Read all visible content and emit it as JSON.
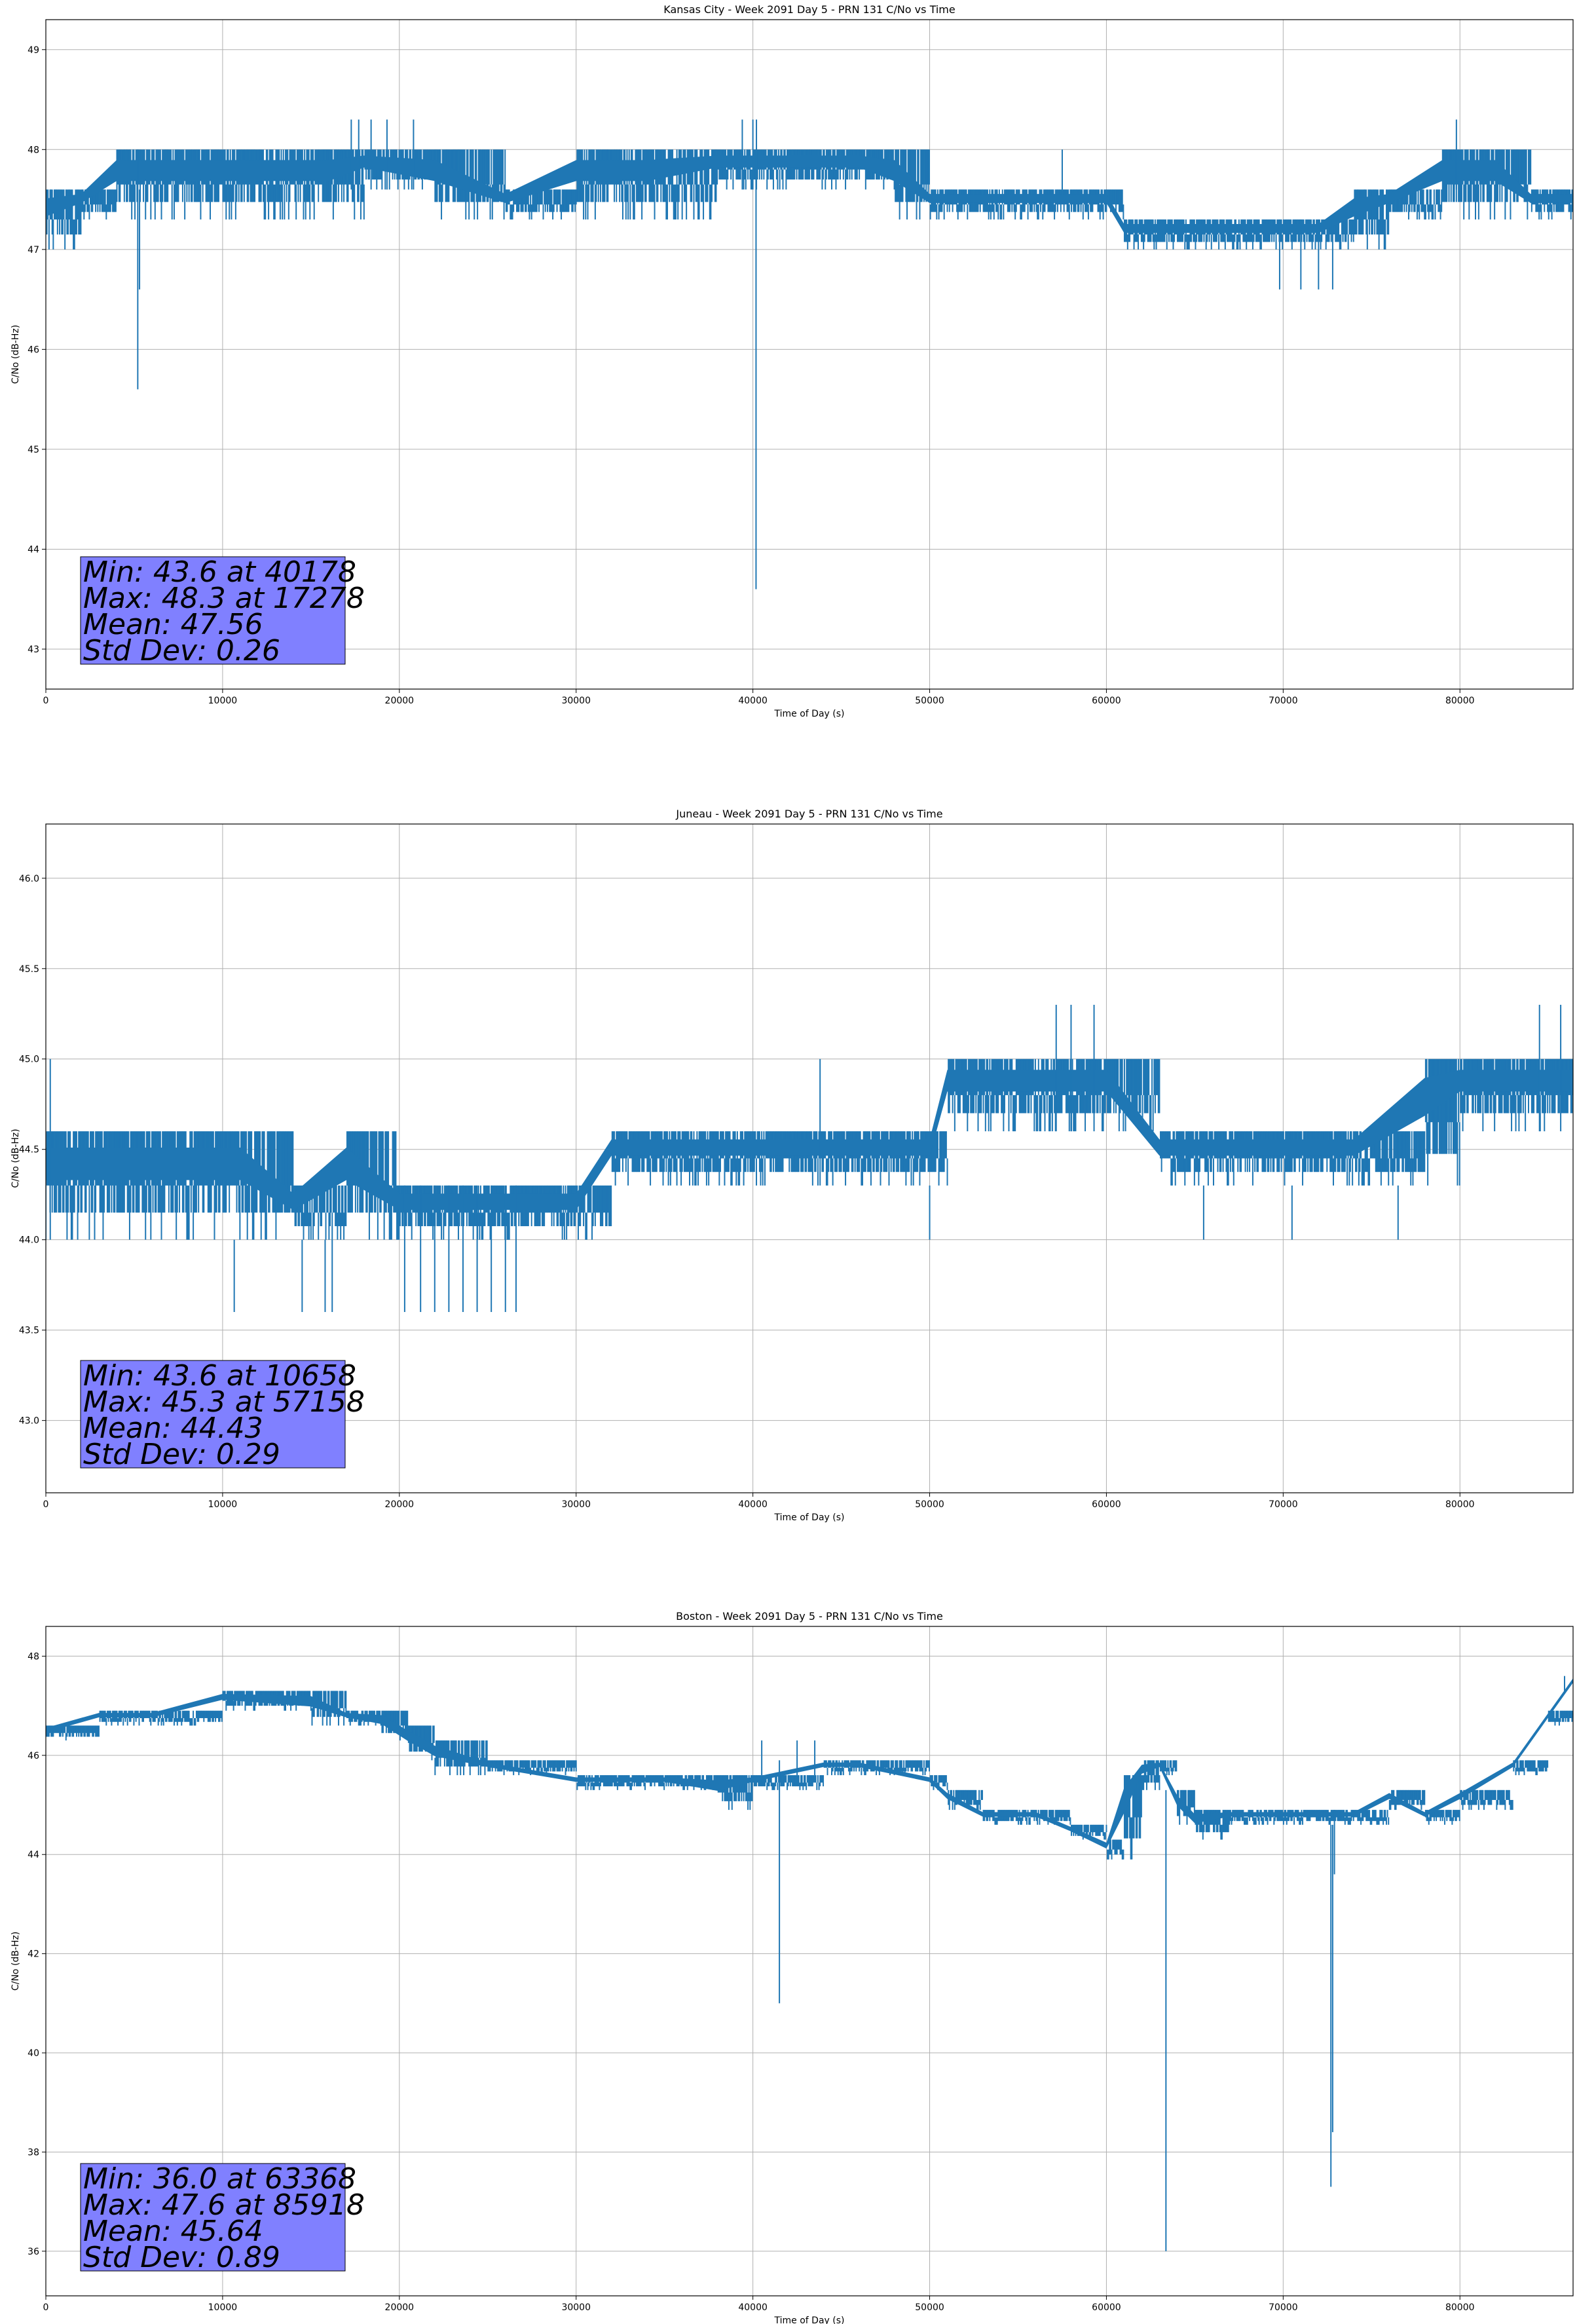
{
  "figure": {
    "background": "#ffffff",
    "line_color": "#1f77b4",
    "stats_box_color": "#8080ff"
  },
  "chart_data": [
    {
      "type": "line",
      "title": "Kansas City - Week 2091 Day 5 - PRN 131 C/No vs Time",
      "xlabel": "Time of Day (s)",
      "ylabel": "C/No (dB-Hz)",
      "xlim": [
        0,
        86400
      ],
      "ylim": [
        42.6,
        49.3
      ],
      "xticks": [
        0,
        10000,
        20000,
        30000,
        40000,
        50000,
        60000,
        70000,
        80000
      ],
      "xtick_labels": [
        "0",
        "10000",
        "20000",
        "30000",
        "40000",
        "50000",
        "60000",
        "70000",
        "80000"
      ],
      "yticks": [
        43,
        44,
        45,
        46,
        47,
        48,
        49
      ],
      "ytick_labels": [
        "43",
        "44",
        "45",
        "46",
        "47",
        "48",
        "49"
      ],
      "grid": true,
      "stats": [
        "Min: 43.6 at 40178",
        "Max: 48.3 at 17278",
        "Mean: 47.56",
        "Std Dev: 0.26"
      ],
      "band": {
        "x": [
          0,
          2000,
          4000,
          5000,
          8000,
          12000,
          16000,
          18000,
          22000,
          26000,
          30000,
          34000,
          38000,
          42000,
          46000,
          48000,
          50000,
          54000,
          58000,
          60000,
          61000,
          64000,
          68000,
          72000,
          74000,
          76000,
          79000,
          82000,
          84000,
          86400
        ],
        "low": [
          47.0,
          47.3,
          47.3,
          47.3,
          47.3,
          47.3,
          47.3,
          47.6,
          47.3,
          47.3,
          47.3,
          47.3,
          47.6,
          47.6,
          47.6,
          47.3,
          47.3,
          47.3,
          47.3,
          47.3,
          47.0,
          47.0,
          47.0,
          47.0,
          47.0,
          47.3,
          47.3,
          47.3,
          47.3,
          47.3
        ],
        "high": [
          47.6,
          47.6,
          48.0,
          48.0,
          48.0,
          48.0,
          48.0,
          48.0,
          48.0,
          47.6,
          48.0,
          48.0,
          48.0,
          48.0,
          48.0,
          48.0,
          47.6,
          47.6,
          47.6,
          47.6,
          47.3,
          47.3,
          47.3,
          47.3,
          47.6,
          47.6,
          48.0,
          48.0,
          47.6,
          47.6
        ]
      },
      "spikes": [
        {
          "x": 5200,
          "low": 45.6,
          "high": 48.0
        },
        {
          "x": 5300,
          "low": 46.6,
          "high": 47.6
        },
        {
          "x": 40178,
          "low": 43.6,
          "high": 48.0
        },
        {
          "x": 17278,
          "low": 47.6,
          "high": 48.3
        },
        {
          "x": 17700,
          "low": 47.6,
          "high": 48.3
        },
        {
          "x": 18400,
          "low": 47.6,
          "high": 48.3
        },
        {
          "x": 19300,
          "low": 47.6,
          "high": 48.3
        },
        {
          "x": 20800,
          "low": 47.6,
          "high": 48.3
        },
        {
          "x": 39400,
          "low": 47.6,
          "high": 48.3
        },
        {
          "x": 40000,
          "low": 47.6,
          "high": 48.3
        },
        {
          "x": 40200,
          "low": 47.6,
          "high": 48.3
        },
        {
          "x": 69800,
          "low": 46.6,
          "high": 47.3
        },
        {
          "x": 71000,
          "low": 46.6,
          "high": 47.3
        },
        {
          "x": 72000,
          "low": 46.6,
          "high": 47.3
        },
        {
          "x": 72800,
          "low": 46.6,
          "high": 47.3
        },
        {
          "x": 79800,
          "low": 47.6,
          "high": 48.3
        },
        {
          "x": 57500,
          "low": 47.6,
          "high": 48.0
        }
      ]
    },
    {
      "type": "line",
      "title": "Juneau - Week 2091 Day 5 - PRN 131 C/No vs Time",
      "xlabel": "Time of Day (s)",
      "ylabel": "C/No (dB-Hz)",
      "xlim": [
        0,
        86400
      ],
      "ylim": [
        42.6,
        46.3
      ],
      "xticks": [
        0,
        10000,
        20000,
        30000,
        40000,
        50000,
        60000,
        70000,
        80000
      ],
      "xtick_labels": [
        "0",
        "10000",
        "20000",
        "30000",
        "40000",
        "50000",
        "60000",
        "70000",
        "80000"
      ],
      "yticks": [
        43.0,
        43.5,
        44.0,
        44.5,
        45.0,
        45.5,
        46.0
      ],
      "ytick_labels": [
        "43.0",
        "43.5",
        "44.0",
        "44.5",
        "45.0",
        "45.5",
        "46.0"
      ],
      "grid": true,
      "stats": [
        "Min: 43.6 at 10658",
        "Max: 45.3 at 57158",
        "Mean: 44.43",
        "Std Dev: 0.29"
      ],
      "band": {
        "x": [
          0,
          2000,
          5000,
          9000,
          11000,
          14000,
          17000,
          20000,
          24000,
          27000,
          30000,
          32000,
          36000,
          40000,
          43000,
          46000,
          50000,
          51000,
          54000,
          57000,
          60000,
          63000,
          66000,
          70000,
          74000,
          78000,
          80000,
          83000,
          86400
        ],
        "low": [
          44.0,
          44.0,
          44.0,
          44.0,
          44.0,
          44.0,
          44.0,
          44.0,
          44.0,
          44.0,
          44.0,
          44.3,
          44.3,
          44.3,
          44.3,
          44.3,
          44.3,
          44.6,
          44.6,
          44.6,
          44.6,
          44.3,
          44.3,
          44.3,
          44.3,
          44.3,
          44.6,
          44.6,
          44.6
        ],
        "high": [
          44.6,
          44.6,
          44.6,
          44.6,
          44.6,
          44.3,
          44.6,
          44.3,
          44.3,
          44.3,
          44.3,
          44.6,
          44.6,
          44.6,
          44.6,
          44.6,
          44.6,
          45.0,
          45.0,
          45.0,
          45.0,
          44.6,
          44.6,
          44.6,
          44.6,
          45.0,
          45.0,
          45.0,
          45.0
        ]
      },
      "spikes": [
        {
          "x": 250,
          "low": 44.0,
          "high": 45.0
        },
        {
          "x": 10658,
          "low": 43.6,
          "high": 44.0
        },
        {
          "x": 14500,
          "low": 43.6,
          "high": 44.0
        },
        {
          "x": 15800,
          "low": 43.6,
          "high": 44.0
        },
        {
          "x": 16200,
          "low": 43.6,
          "high": 44.0
        },
        {
          "x": 20300,
          "low": 43.6,
          "high": 44.3
        },
        {
          "x": 21200,
          "low": 43.6,
          "high": 44.3
        },
        {
          "x": 22000,
          "low": 43.6,
          "high": 44.3
        },
        {
          "x": 22800,
          "low": 43.6,
          "high": 44.3
        },
        {
          "x": 23600,
          "low": 43.6,
          "high": 44.3
        },
        {
          "x": 24400,
          "low": 43.6,
          "high": 44.3
        },
        {
          "x": 25200,
          "low": 43.6,
          "high": 44.3
        },
        {
          "x": 26000,
          "low": 43.6,
          "high": 44.3
        },
        {
          "x": 26600,
          "low": 43.6,
          "high": 44.3
        },
        {
          "x": 43800,
          "low": 44.3,
          "high": 45.0
        },
        {
          "x": 57158,
          "low": 44.6,
          "high": 45.3
        },
        {
          "x": 58000,
          "low": 44.6,
          "high": 45.3
        },
        {
          "x": 59300,
          "low": 44.6,
          "high": 45.3
        },
        {
          "x": 84500,
          "low": 44.6,
          "high": 45.3
        },
        {
          "x": 85700,
          "low": 44.6,
          "high": 45.3
        },
        {
          "x": 50000,
          "low": 44.0,
          "high": 44.3
        },
        {
          "x": 65500,
          "low": 44.0,
          "high": 44.3
        },
        {
          "x": 70500,
          "low": 44.0,
          "high": 44.3
        },
        {
          "x": 76500,
          "low": 44.0,
          "high": 44.3
        }
      ]
    },
    {
      "type": "line",
      "title": "Boston - Week 2091 Day 5 - PRN 131 C/No vs Time",
      "xlabel": "Time of Day (s)",
      "ylabel": "C/No (dB-Hz)",
      "xlim": [
        0,
        86400
      ],
      "ylim": [
        35.1,
        48.6
      ],
      "xticks": [
        0,
        10000,
        20000,
        30000,
        40000,
        50000,
        60000,
        70000,
        80000
      ],
      "xtick_labels": [
        "0",
        "10000",
        "20000",
        "30000",
        "40000",
        "50000",
        "60000",
        "70000",
        "80000"
      ],
      "yticks": [
        36,
        38,
        40,
        42,
        44,
        46,
        48
      ],
      "ytick_labels": [
        "36",
        "38",
        "40",
        "42",
        "44",
        "46",
        "48"
      ],
      "grid": true,
      "stats": [
        "Min: 36.0 at 63368",
        "Max: 47.6 at 85918",
        "Mean: 45.64",
        "Std Dev: 0.89"
      ],
      "band": {
        "x": [
          0,
          3000,
          6000,
          10000,
          15000,
          17000,
          19000,
          20500,
          22000,
          25000,
          30000,
          33000,
          35000,
          38000,
          40000,
          44000,
          46000,
          50000,
          51000,
          53000,
          56000,
          58000,
          60000,
          61000,
          62000,
          63000,
          64000,
          65000,
          67000,
          70000,
          72000,
          74000,
          76000,
          78000,
          80000,
          83000,
          85000,
          86400
        ],
        "low": [
          46.3,
          46.6,
          46.6,
          46.9,
          46.6,
          46.6,
          46.3,
          45.9,
          45.6,
          45.6,
          45.3,
          45.3,
          45.3,
          44.9,
          45.3,
          45.6,
          45.6,
          45.3,
          44.9,
          44.6,
          44.6,
          44.3,
          43.9,
          43.9,
          45.3,
          45.6,
          44.6,
          44.3,
          44.6,
          44.6,
          44.6,
          44.6,
          44.9,
          44.6,
          44.9,
          45.6,
          46.6,
          47.3
        ],
        "high": [
          46.6,
          46.9,
          46.9,
          47.3,
          47.3,
          46.9,
          46.9,
          46.6,
          46.3,
          45.9,
          45.6,
          45.6,
          45.6,
          45.6,
          45.6,
          45.9,
          45.9,
          45.6,
          45.3,
          44.9,
          44.9,
          44.6,
          44.3,
          45.6,
          45.9,
          45.9,
          45.3,
          44.9,
          44.9,
          44.9,
          44.9,
          44.9,
          45.3,
          44.9,
          45.3,
          45.9,
          46.9,
          47.6
        ]
      },
      "spikes": [
        {
          "x": 41500,
          "low": 41.0,
          "high": 45.9
        },
        {
          "x": 63368,
          "low": 36.0,
          "high": 45.3
        },
        {
          "x": 72700,
          "low": 37.3,
          "high": 44.6
        },
        {
          "x": 72800,
          "low": 38.4,
          "high": 44.6
        },
        {
          "x": 72900,
          "low": 43.6,
          "high": 44.9
        },
        {
          "x": 40500,
          "low": 45.6,
          "high": 46.3
        },
        {
          "x": 42500,
          "low": 45.6,
          "high": 46.3
        },
        {
          "x": 43500,
          "low": 45.6,
          "high": 46.3
        },
        {
          "x": 85918,
          "low": 47.3,
          "high": 47.6
        }
      ]
    }
  ]
}
